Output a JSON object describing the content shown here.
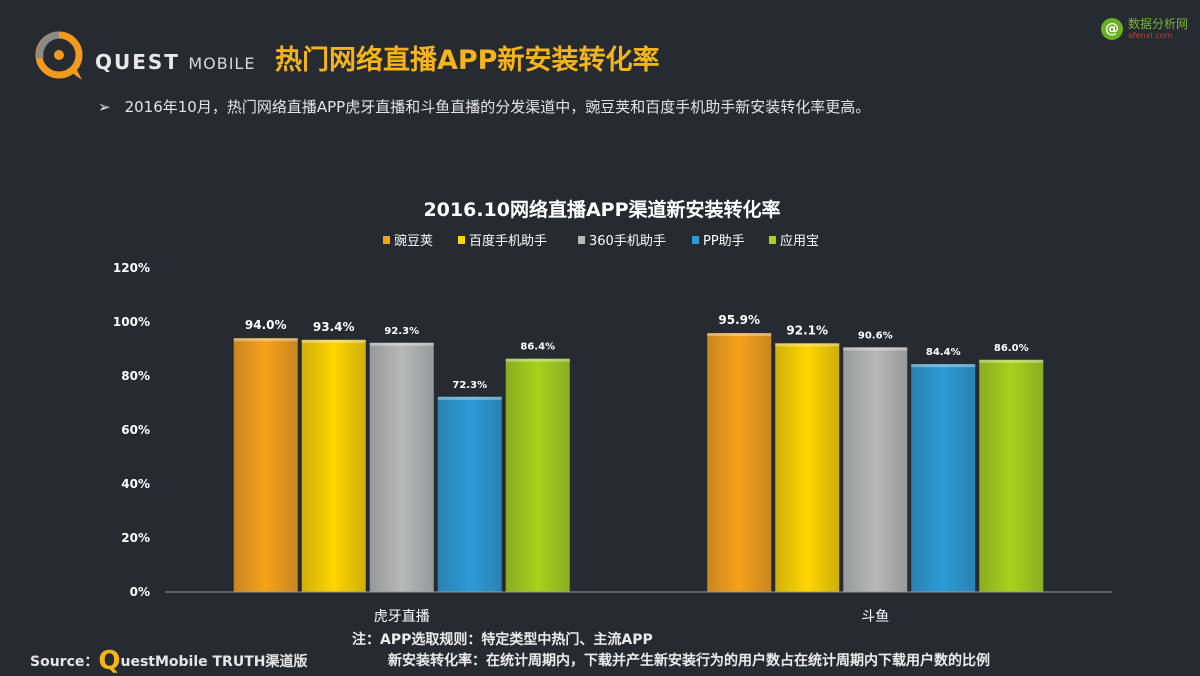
{
  "header": {
    "brand_bold": "QUEST",
    "brand_light": "MOBILE",
    "title": "热门网络直播APP新安装转化率"
  },
  "watermark": {
    "text": "数据分析网",
    "sub": "afenxi.com",
    "icon": "@"
  },
  "bullet": {
    "symbol": "➢",
    "text": "2016年10月，热门网络直播APP虎牙直播和斗鱼直播的分发渠道中，豌豆荚和百度手机助手新安装转化率更高。"
  },
  "chart_data": {
    "type": "bar",
    "title": "2016.10网络直播APP渠道新安装转化率",
    "categories": [
      "虎牙直播",
      "斗鱼"
    ],
    "series": [
      {
        "name": "豌豆荚",
        "color": "#f7a11a",
        "values": [
          94.0,
          95.9
        ],
        "labels": [
          "94.0%",
          "95.9%"
        ]
      },
      {
        "name": "百度手机助手",
        "color": "#ffd500",
        "values": [
          93.4,
          92.1
        ],
        "labels": [
          "93.4%",
          "92.1%"
        ]
      },
      {
        "name": "360手机助手",
        "color": "#b8b8b8",
        "values": [
          92.3,
          90.6
        ],
        "labels": [
          "92.3%",
          "90.6%"
        ]
      },
      {
        "name": "PP助手",
        "color": "#2b9bd6",
        "values": [
          72.3,
          84.4
        ],
        "labels": [
          "72.3%",
          "84.4%"
        ]
      },
      {
        "name": "应用宝",
        "color": "#a6d21c",
        "values": [
          86.4,
          86.0
        ],
        "labels": [
          "86.4%",
          "86.0%"
        ]
      }
    ],
    "yticks": [
      "0%",
      "20%",
      "40%",
      "60%",
      "80%",
      "100%",
      "120%"
    ],
    "ylim": [
      0,
      120
    ],
    "xlabel": "",
    "ylabel": "",
    "legend_position": "top",
    "grid": false
  },
  "footer": {
    "source_label": "Source：",
    "source_q": "Q",
    "source_rest": "uestMobile TRUTH渠道版",
    "note_line1": "注：APP选取规则：特定类型中热门、主流APP",
    "note_line2": "新安装转化率：在统计周期内，下载并产生新安装行为的用户数占在统计周期内下载用户数的比例"
  }
}
